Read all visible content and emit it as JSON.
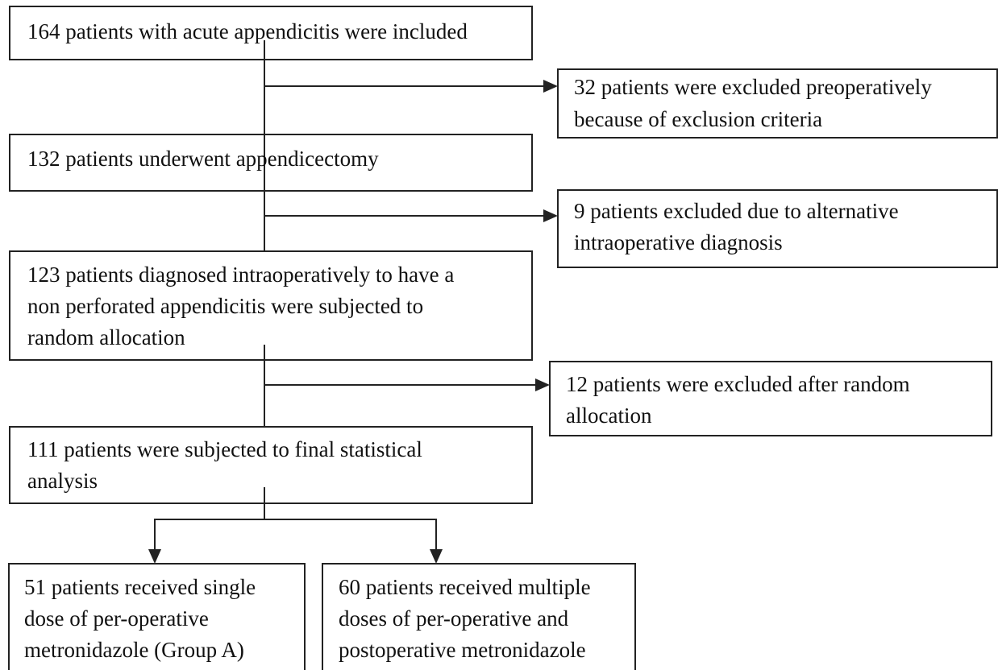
{
  "nodes": [
    {
      "lines": [
        "164 patients with acute appendicitis were included"
      ]
    },
    {
      "lines": [
        "32 patients were excluded preoperatively",
        "because of exclusion criteria"
      ]
    },
    {
      "lines": [
        "132 patients underwent appendicectomy"
      ]
    },
    {
      "lines": [
        "9 patients excluded due to alternative",
        "intraoperative diagnosis"
      ]
    },
    {
      "lines": [
        "123 patients diagnosed intraoperatively to have a",
        "non perforated appendicitis were subjected to",
        "random allocation"
      ]
    },
    {
      "lines": [
        "12 patients were excluded after random",
        "allocation"
      ]
    },
    {
      "lines": [
        "111 patients were subjected to final statistical",
        "analysis"
      ]
    },
    {
      "lines": [
        "51 patients received single",
        "dose of per-operative",
        "metronidazole (Group A)"
      ]
    },
    {
      "lines": [
        "60 patients received multiple",
        "doses of per-operative and",
        "postoperative metronidazole"
      ]
    }
  ]
}
